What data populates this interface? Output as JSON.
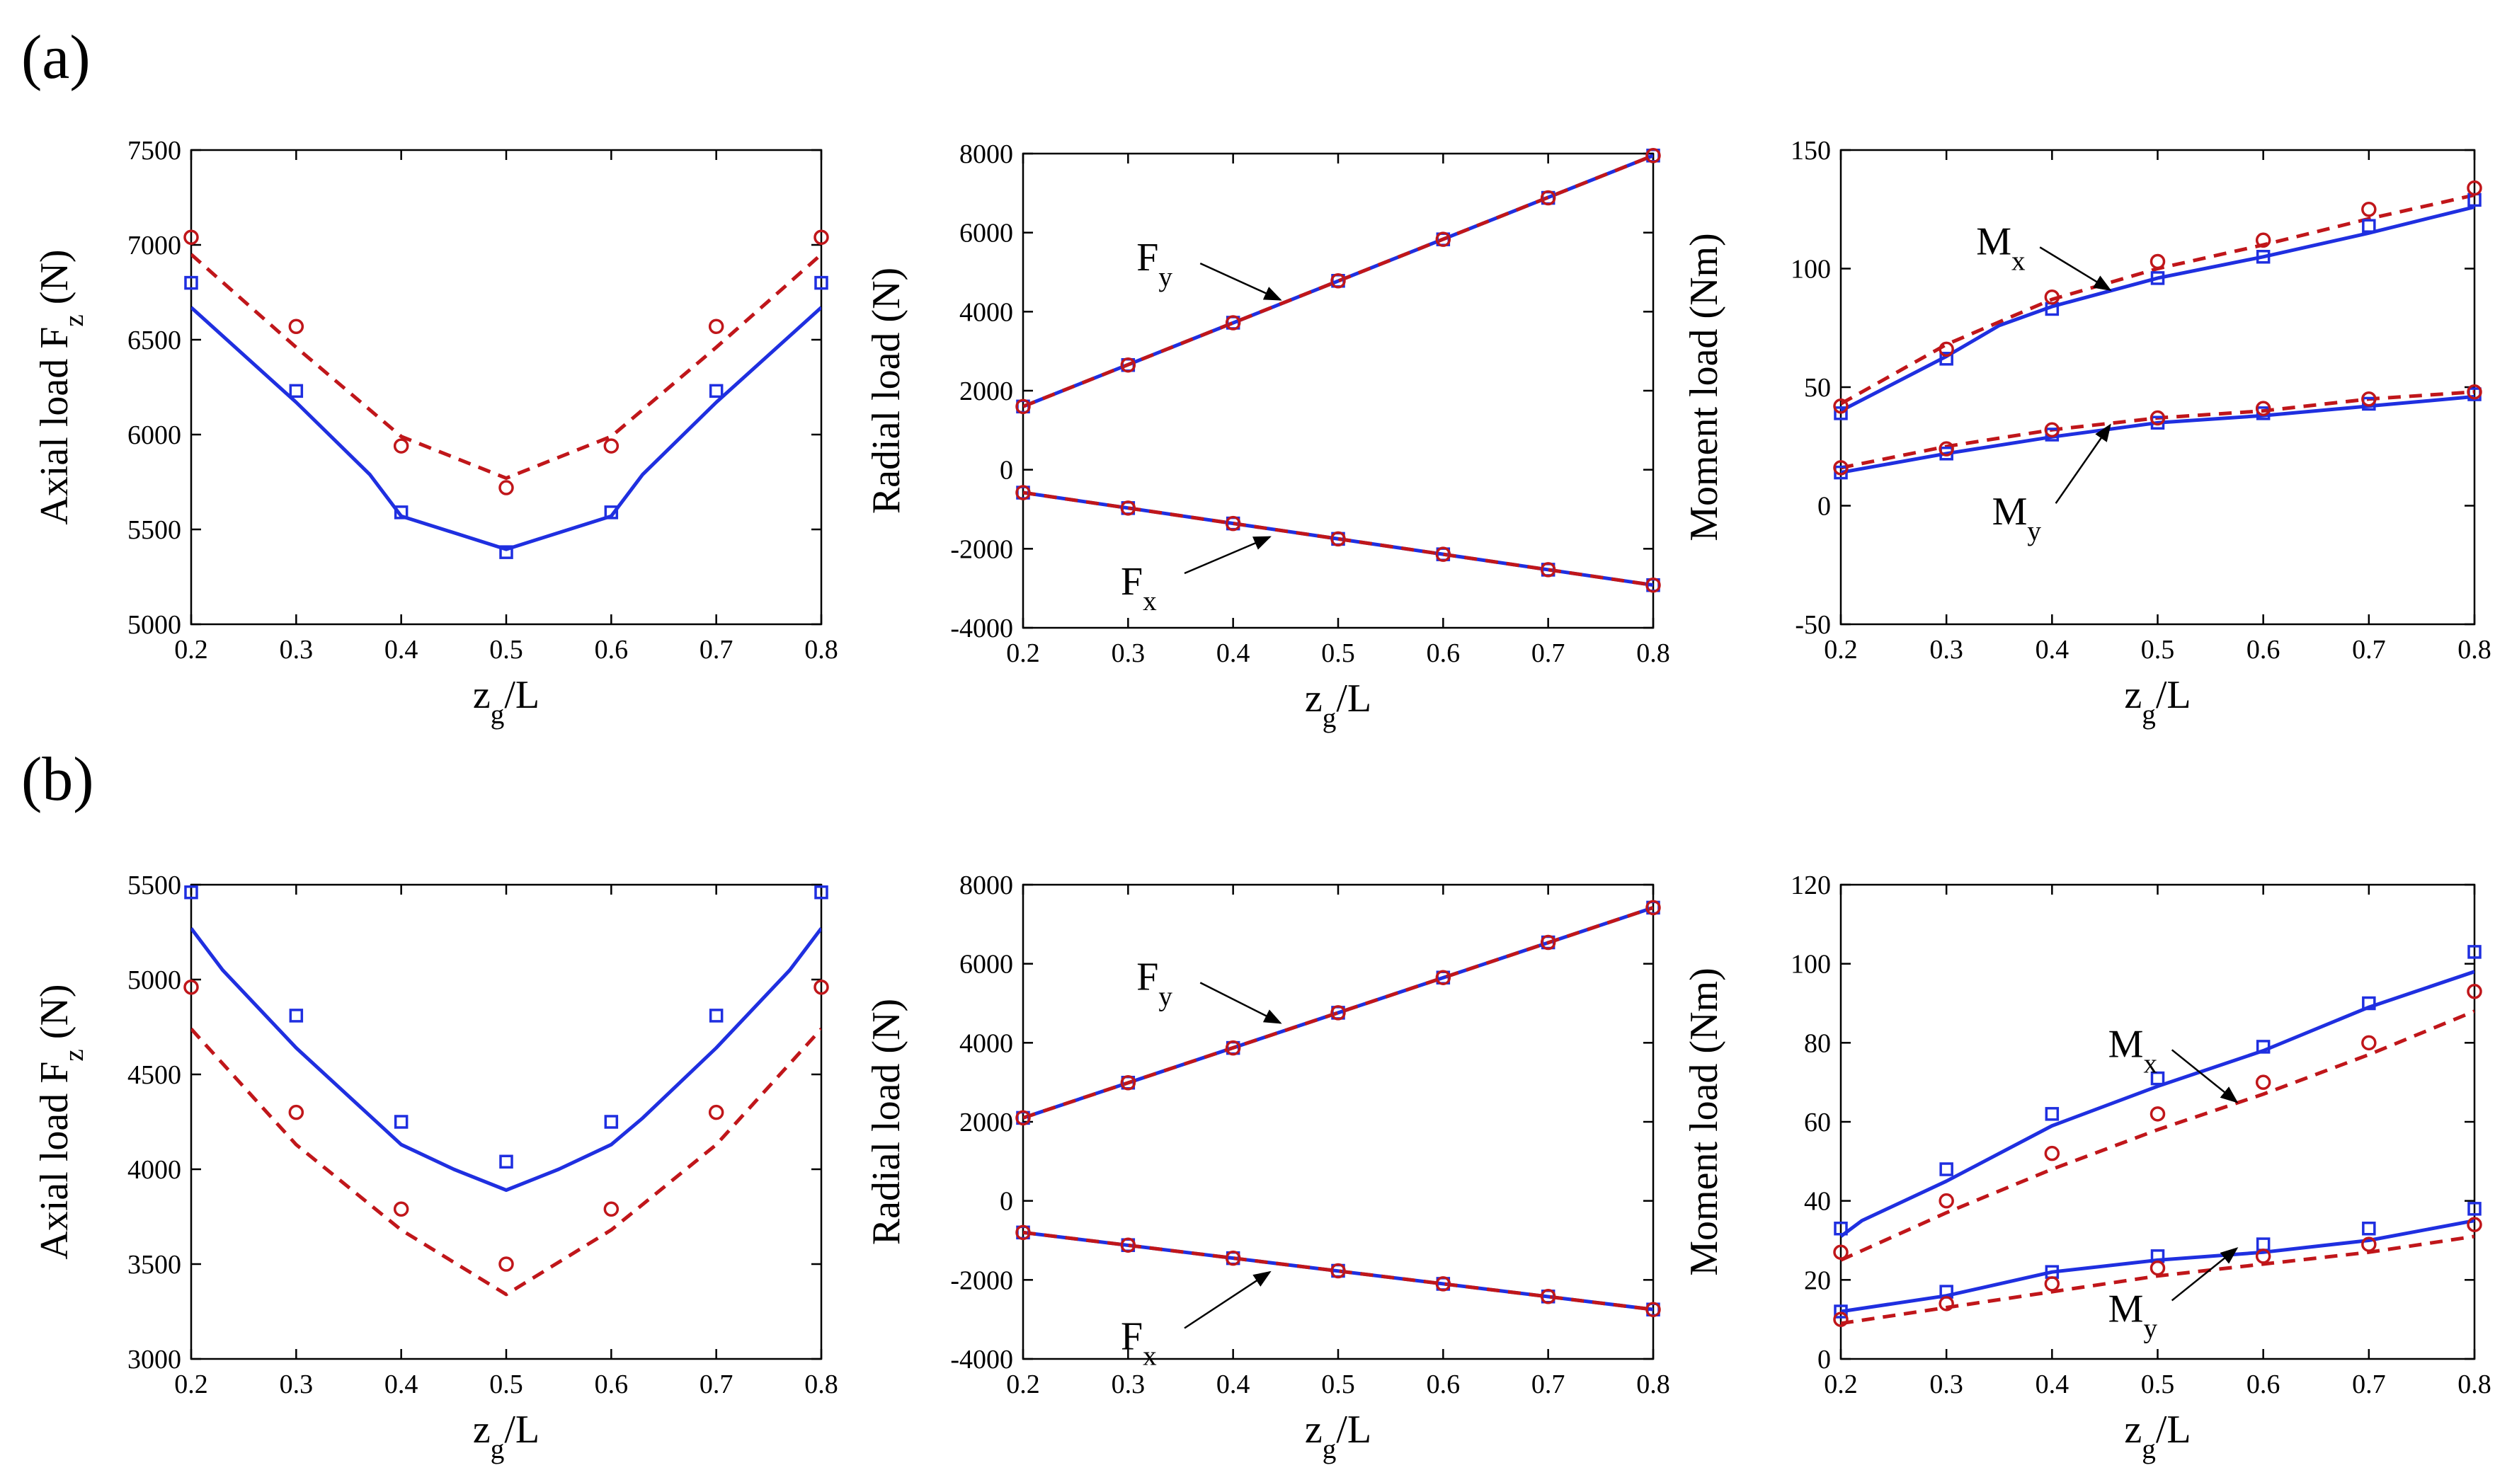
{
  "panel_labels": [
    "(a)",
    "(b)"
  ],
  "colors": {
    "blue": "#1f2fe0",
    "red": "#c0161a",
    "arrow": "#000000"
  },
  "chart_data": [
    {
      "id": "a-axial",
      "type": "line",
      "xlabel": "z_g/L",
      "ylabel": "Axial load F_z  (N)",
      "xlim": [
        0.2,
        0.8
      ],
      "ylim": [
        5000,
        7500
      ],
      "xticks": [
        0.2,
        0.3,
        0.4,
        0.5,
        0.6,
        0.7,
        0.8
      ],
      "yticks": [
        5000,
        5500,
        6000,
        6500,
        7000,
        7500
      ],
      "series": [
        {
          "name": "blue-solid",
          "color": "blue",
          "style": "solid",
          "x": [
            0.2,
            0.3,
            0.37,
            0.4,
            0.5,
            0.6,
            0.63,
            0.7,
            0.8
          ],
          "y": [
            6670,
            6170,
            5790,
            5570,
            5395,
            5570,
            5790,
            6170,
            6670
          ]
        },
        {
          "name": "red-dashed",
          "color": "red",
          "style": "dashed",
          "x": [
            0.2,
            0.3,
            0.4,
            0.5,
            0.6,
            0.7,
            0.8
          ],
          "y": [
            6950,
            6460,
            5990,
            5770,
            5990,
            6460,
            6950
          ]
        },
        {
          "name": "blue-squares",
          "color": "blue",
          "marker": "square",
          "x": [
            0.2,
            0.3,
            0.4,
            0.5,
            0.6,
            0.7,
            0.8
          ],
          "y": [
            6800,
            6230,
            5590,
            5380,
            5590,
            6230,
            6800
          ]
        },
        {
          "name": "red-circles",
          "color": "red",
          "marker": "circle",
          "x": [
            0.2,
            0.3,
            0.4,
            0.5,
            0.6,
            0.7,
            0.8
          ],
          "y": [
            7040,
            6570,
            5940,
            5720,
            5940,
            6570,
            7040
          ]
        }
      ],
      "annotations": []
    },
    {
      "id": "a-radial",
      "type": "line",
      "xlabel": "z_g/L",
      "ylabel": "Radial load (N)",
      "xlim": [
        0.2,
        0.8
      ],
      "ylim": [
        -4000,
        8000
      ],
      "xticks": [
        0.2,
        0.3,
        0.4,
        0.5,
        0.6,
        0.7,
        0.8
      ],
      "yticks": [
        -4000,
        -2000,
        0,
        2000,
        4000,
        6000,
        8000
      ],
      "series": [
        {
          "name": "Fy-blue",
          "color": "blue",
          "style": "solid",
          "x": [
            0.2,
            0.8
          ],
          "y": [
            1600,
            7950
          ]
        },
        {
          "name": "Fy-red",
          "color": "red",
          "style": "dashed",
          "x": [
            0.2,
            0.8
          ],
          "y": [
            1600,
            7950
          ]
        },
        {
          "name": "Fx-blue",
          "color": "blue",
          "style": "solid",
          "x": [
            0.2,
            0.8
          ],
          "y": [
            -580,
            -2920
          ]
        },
        {
          "name": "Fx-red",
          "color": "red",
          "style": "dashed",
          "x": [
            0.2,
            0.8
          ],
          "y": [
            -580,
            -2920
          ]
        },
        {
          "name": "Fy-squares",
          "color": "blue",
          "marker": "square",
          "x": [
            0.2,
            0.3,
            0.4,
            0.5,
            0.6,
            0.7,
            0.8
          ],
          "y": [
            1600,
            2650,
            3720,
            4780,
            5830,
            6880,
            7950
          ]
        },
        {
          "name": "Fy-circles",
          "color": "red",
          "marker": "circle",
          "x": [
            0.2,
            0.3,
            0.4,
            0.5,
            0.6,
            0.7,
            0.8
          ],
          "y": [
            1600,
            2650,
            3720,
            4780,
            5830,
            6880,
            7950
          ]
        },
        {
          "name": "Fx-squares",
          "color": "blue",
          "marker": "square",
          "x": [
            0.2,
            0.3,
            0.4,
            0.5,
            0.6,
            0.7,
            0.8
          ],
          "y": [
            -580,
            -970,
            -1360,
            -1750,
            -2140,
            -2530,
            -2920
          ]
        },
        {
          "name": "Fx-circles",
          "color": "red",
          "marker": "circle",
          "x": [
            0.2,
            0.3,
            0.4,
            0.5,
            0.6,
            0.7,
            0.8
          ],
          "y": [
            -580,
            -970,
            -1360,
            -1750,
            -2140,
            -2530,
            -2920
          ]
        }
      ],
      "annotations": [
        {
          "base": "F",
          "sub": "y",
          "tx": 0.335,
          "ty": 5400,
          "ax": 0.445,
          "ay": 4300
        },
        {
          "base": "F",
          "sub": "x",
          "tx": 0.32,
          "ty": -2800,
          "ax": 0.435,
          "ay": -1700
        }
      ]
    },
    {
      "id": "a-moment",
      "type": "line",
      "xlabel": "z_g/L",
      "ylabel": "Moment load (Nm)",
      "xlim": [
        0.2,
        0.8
      ],
      "ylim": [
        -50,
        150
      ],
      "xticks": [
        0.2,
        0.3,
        0.4,
        0.5,
        0.6,
        0.7,
        0.8
      ],
      "yticks": [
        -50,
        0,
        50,
        100,
        150
      ],
      "series": [
        {
          "name": "Mx-blue",
          "color": "blue",
          "style": "solid",
          "x": [
            0.2,
            0.3,
            0.35,
            0.4,
            0.5,
            0.6,
            0.7,
            0.8
          ],
          "y": [
            40,
            63,
            76,
            84,
            96,
            105,
            115,
            126
          ]
        },
        {
          "name": "Mx-red",
          "color": "red",
          "style": "dashed",
          "x": [
            0.2,
            0.3,
            0.4,
            0.5,
            0.6,
            0.7,
            0.8
          ],
          "y": [
            43,
            68,
            87,
            100,
            110,
            121,
            131
          ]
        },
        {
          "name": "My-blue",
          "color": "blue",
          "style": "solid",
          "x": [
            0.2,
            0.3,
            0.4,
            0.5,
            0.6,
            0.7,
            0.8
          ],
          "y": [
            14,
            22,
            29,
            35,
            38,
            42,
            46
          ]
        },
        {
          "name": "My-red",
          "color": "red",
          "style": "dashed",
          "x": [
            0.2,
            0.3,
            0.4,
            0.5,
            0.6,
            0.7,
            0.8
          ],
          "y": [
            16,
            25,
            32,
            37,
            40,
            45,
            48
          ]
        },
        {
          "name": "Mx-squares",
          "color": "blue",
          "marker": "square",
          "x": [
            0.2,
            0.3,
            0.4,
            0.5,
            0.6,
            0.7,
            0.8
          ],
          "y": [
            39,
            62,
            83,
            96,
            105,
            118,
            129
          ]
        },
        {
          "name": "Mx-circles",
          "color": "red",
          "marker": "circle",
          "x": [
            0.2,
            0.3,
            0.4,
            0.5,
            0.6,
            0.7,
            0.8
          ],
          "y": [
            42,
            66,
            88,
            103,
            112,
            125,
            134
          ]
        },
        {
          "name": "My-squares",
          "color": "blue",
          "marker": "square",
          "x": [
            0.2,
            0.3,
            0.4,
            0.5,
            0.6,
            0.7,
            0.8
          ],
          "y": [
            14,
            22,
            30,
            35,
            39,
            43,
            47
          ]
        },
        {
          "name": "My-circles",
          "color": "red",
          "marker": "circle",
          "x": [
            0.2,
            0.3,
            0.4,
            0.5,
            0.6,
            0.7,
            0.8
          ],
          "y": [
            16,
            24,
            32,
            37,
            41,
            45,
            48
          ]
        }
      ],
      "annotations": [
        {
          "base": "M",
          "sub": "x",
          "tx": 0.355,
          "ty": 112,
          "ax": 0.455,
          "ay": 91
        },
        {
          "base": "M",
          "sub": "y",
          "tx": 0.37,
          "ty": -2,
          "ax": 0.455,
          "ay": 34
        }
      ]
    },
    {
      "id": "b-axial",
      "type": "line",
      "xlabel": "z_g/L",
      "ylabel": "Axial load F_z  (N)",
      "xlim": [
        0.2,
        0.8
      ],
      "ylim": [
        3000,
        5500
      ],
      "xticks": [
        0.2,
        0.3,
        0.4,
        0.5,
        0.6,
        0.7,
        0.8
      ],
      "yticks": [
        3000,
        3500,
        4000,
        4500,
        5000,
        5500
      ],
      "series": [
        {
          "name": "blue-solid",
          "color": "blue",
          "style": "solid",
          "x": [
            0.2,
            0.23,
            0.3,
            0.4,
            0.45,
            0.5,
            0.55,
            0.6,
            0.63,
            0.7,
            0.77,
            0.8
          ],
          "y": [
            5270,
            5050,
            4640,
            4130,
            4000,
            3890,
            4000,
            4130,
            4270,
            4640,
            5050,
            5270
          ]
        },
        {
          "name": "red-dashed",
          "color": "red",
          "style": "dashed",
          "x": [
            0.2,
            0.3,
            0.4,
            0.5,
            0.6,
            0.7,
            0.8
          ],
          "y": [
            4740,
            4130,
            3680,
            3340,
            3680,
            4130,
            4740
          ]
        },
        {
          "name": "blue-squares",
          "color": "blue",
          "marker": "square",
          "x": [
            0.2,
            0.3,
            0.4,
            0.5,
            0.6,
            0.7,
            0.8
          ],
          "y": [
            5460,
            4810,
            4250,
            4040,
            4250,
            4810,
            5460
          ]
        },
        {
          "name": "red-circles",
          "color": "red",
          "marker": "circle",
          "x": [
            0.2,
            0.3,
            0.4,
            0.5,
            0.6,
            0.7,
            0.8
          ],
          "y": [
            4960,
            4300,
            3790,
            3500,
            3790,
            4300,
            4960
          ]
        }
      ],
      "annotations": []
    },
    {
      "id": "b-radial",
      "type": "line",
      "xlabel": "z_g/L",
      "ylabel": "Radial load (N)",
      "xlim": [
        0.2,
        0.8
      ],
      "ylim": [
        -4000,
        8000
      ],
      "xticks": [
        0.2,
        0.3,
        0.4,
        0.5,
        0.6,
        0.7,
        0.8
      ],
      "yticks": [
        -4000,
        -2000,
        0,
        2000,
        4000,
        6000,
        8000
      ],
      "series": [
        {
          "name": "Fy-blue",
          "color": "blue",
          "style": "solid",
          "x": [
            0.2,
            0.8
          ],
          "y": [
            2100,
            7420
          ]
        },
        {
          "name": "Fy-red",
          "color": "red",
          "style": "dashed",
          "x": [
            0.2,
            0.8
          ],
          "y": [
            2100,
            7420
          ]
        },
        {
          "name": "Fx-blue",
          "color": "blue",
          "style": "solid",
          "x": [
            0.2,
            0.8
          ],
          "y": [
            -800,
            -2750
          ]
        },
        {
          "name": "Fx-red",
          "color": "red",
          "style": "dashed",
          "x": [
            0.2,
            0.8
          ],
          "y": [
            -800,
            -2750
          ]
        },
        {
          "name": "Fy-squares",
          "color": "blue",
          "marker": "square",
          "x": [
            0.2,
            0.3,
            0.4,
            0.5,
            0.6,
            0.7,
            0.8
          ],
          "y": [
            2100,
            2990,
            3870,
            4760,
            5650,
            6540,
            7420
          ]
        },
        {
          "name": "Fy-circles",
          "color": "red",
          "marker": "circle",
          "x": [
            0.2,
            0.3,
            0.4,
            0.5,
            0.6,
            0.7,
            0.8
          ],
          "y": [
            2100,
            2990,
            3870,
            4760,
            5650,
            6540,
            7420
          ]
        },
        {
          "name": "Fx-squares",
          "color": "blue",
          "marker": "square",
          "x": [
            0.2,
            0.3,
            0.4,
            0.5,
            0.6,
            0.7,
            0.8
          ],
          "y": [
            -800,
            -1120,
            -1450,
            -1770,
            -2100,
            -2420,
            -2750
          ]
        },
        {
          "name": "Fx-circles",
          "color": "red",
          "marker": "circle",
          "x": [
            0.2,
            0.3,
            0.4,
            0.5,
            0.6,
            0.7,
            0.8
          ],
          "y": [
            -800,
            -1120,
            -1450,
            -1770,
            -2100,
            -2420,
            -2750
          ]
        }
      ],
      "annotations": [
        {
          "base": "F",
          "sub": "y",
          "tx": 0.335,
          "ty": 5700,
          "ax": 0.445,
          "ay": 4500
        },
        {
          "base": "F",
          "sub": "x",
          "tx": 0.32,
          "ty": -3400,
          "ax": 0.435,
          "ay": -1800
        }
      ]
    },
    {
      "id": "b-moment",
      "type": "line",
      "xlabel": "z_g/L",
      "ylabel": "Moment load (Nm)",
      "xlim": [
        0.2,
        0.8
      ],
      "ylim": [
        0,
        120
      ],
      "xticks": [
        0.2,
        0.3,
        0.4,
        0.5,
        0.6,
        0.7,
        0.8
      ],
      "yticks": [
        0,
        20,
        40,
        60,
        80,
        100,
        120
      ],
      "series": [
        {
          "name": "Mx-blue",
          "color": "blue",
          "style": "solid",
          "x": [
            0.2,
            0.22,
            0.3,
            0.4,
            0.5,
            0.6,
            0.7,
            0.8
          ],
          "y": [
            31,
            35,
            45,
            59,
            69,
            78,
            89,
            98
          ]
        },
        {
          "name": "Mx-red",
          "color": "red",
          "style": "dashed",
          "x": [
            0.2,
            0.3,
            0.4,
            0.5,
            0.6,
            0.7,
            0.8
          ],
          "y": [
            25,
            37,
            48,
            58,
            67,
            77,
            88
          ]
        },
        {
          "name": "My-blue",
          "color": "blue",
          "style": "solid",
          "x": [
            0.2,
            0.3,
            0.4,
            0.5,
            0.6,
            0.7,
            0.8
          ],
          "y": [
            12,
            16,
            22,
            25,
            27,
            30,
            35
          ]
        },
        {
          "name": "My-red",
          "color": "red",
          "style": "dashed",
          "x": [
            0.2,
            0.3,
            0.4,
            0.5,
            0.6,
            0.7,
            0.8
          ],
          "y": [
            9,
            13,
            17,
            21,
            24,
            27,
            31
          ]
        },
        {
          "name": "Mx-squares",
          "color": "blue",
          "marker": "square",
          "x": [
            0.2,
            0.3,
            0.4,
            0.5,
            0.6,
            0.7,
            0.8
          ],
          "y": [
            33,
            48,
            62,
            71,
            79,
            90,
            103
          ]
        },
        {
          "name": "Mx-circles",
          "color": "red",
          "marker": "circle",
          "x": [
            0.2,
            0.3,
            0.4,
            0.5,
            0.6,
            0.7,
            0.8
          ],
          "y": [
            27,
            40,
            52,
            62,
            70,
            80,
            93
          ]
        },
        {
          "name": "My-squares",
          "color": "blue",
          "marker": "square",
          "x": [
            0.2,
            0.3,
            0.4,
            0.5,
            0.6,
            0.7,
            0.8
          ],
          "y": [
            12,
            17,
            22,
            26,
            29,
            33,
            38
          ]
        },
        {
          "name": "My-circles",
          "color": "red",
          "marker": "circle",
          "x": [
            0.2,
            0.3,
            0.4,
            0.5,
            0.6,
            0.7,
            0.8
          ],
          "y": [
            10,
            14,
            19,
            23,
            26,
            29,
            34
          ]
        }
      ],
      "annotations": [
        {
          "base": "M",
          "sub": "x",
          "tx": 0.48,
          "ty": 80,
          "ax": 0.575,
          "ay": 65
        },
        {
          "base": "M",
          "sub": "y",
          "tx": 0.48,
          "ty": 13,
          "ax": 0.575,
          "ay": 28
        }
      ]
    }
  ]
}
